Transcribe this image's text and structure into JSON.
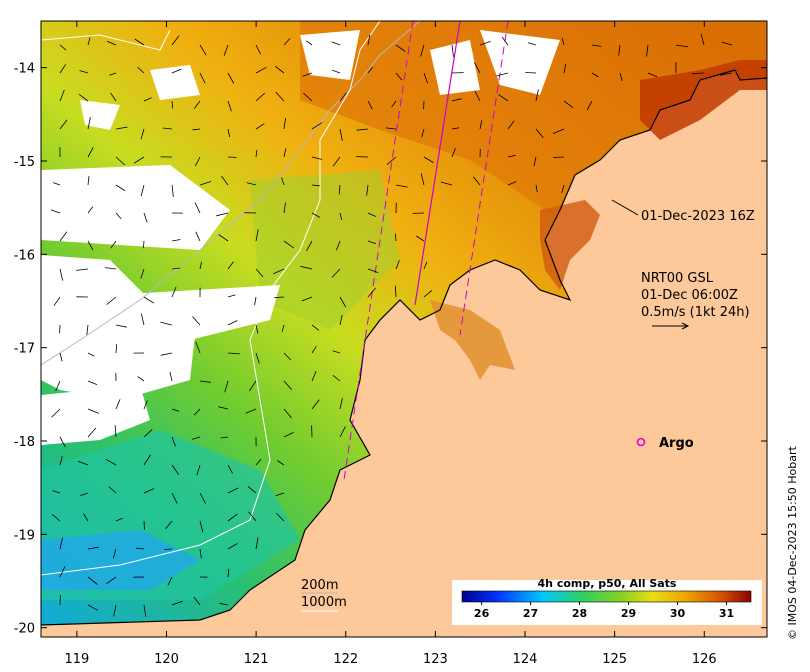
{
  "map": {
    "x_ticks": [
      "119",
      "120",
      "121",
      "122",
      "123",
      "124",
      "125",
      "126"
    ],
    "y_ticks": [
      "-14",
      "-15",
      "-16",
      "-17",
      "-18",
      "-19",
      "-20"
    ],
    "lon_range": [
      118.6,
      126.7
    ],
    "lat_range": [
      -20.1,
      -13.5
    ]
  },
  "annotations": {
    "track_label": "01-Dec-2023 16Z",
    "current_title": "NRT00 GSL",
    "current_time": "01-Dec 06:00Z",
    "current_scale": "0.5m/s (1kt 24h)",
    "argo_label": "Argo",
    "depth_200": "200m",
    "depth_1000": "1000m"
  },
  "colorbar": {
    "title": "4h comp, p50, All Sats",
    "ticks": [
      "26",
      "27",
      "28",
      "29",
      "30",
      "31"
    ],
    "range": [
      25.6,
      31.5
    ]
  },
  "credit": "© IMOS 04-Dec-2023 15:50 Hobart",
  "colors": {
    "land": "#fdc89a",
    "argo": "#e000e0",
    "track": "#cc00cc",
    "bathy": "#b8b8b8",
    "bathy_1000": "#ffffff"
  }
}
